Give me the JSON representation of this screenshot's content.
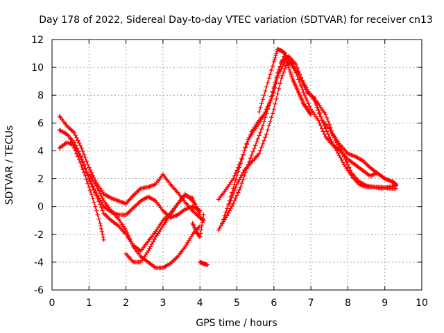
{
  "chart_data": {
    "type": "scatter",
    "title": "Day 178 of 2022, Sidereal Day-to-day VTEC variation (SDTVAR) for receiver cn13",
    "xlabel": "GPS time / hours",
    "ylabel": "SDTVAR / TECUs",
    "xlim": [
      0,
      10
    ],
    "ylim": [
      -6,
      12
    ],
    "xticks": [
      0,
      1,
      2,
      3,
      4,
      5,
      6,
      7,
      8,
      9,
      10
    ],
    "yticks": [
      -6,
      -4,
      -2,
      0,
      2,
      4,
      6,
      8,
      10,
      12
    ],
    "grid": true,
    "marker": "+",
    "color": "#ff0000",
    "series": [
      {
        "name": "s1",
        "x": [
          0.2,
          0.4,
          0.6,
          0.8,
          1.0,
          1.2,
          1.4,
          1.6,
          1.8,
          2.0,
          2.2,
          2.4,
          2.6,
          2.8,
          3.0,
          3.2,
          3.4,
          3.6,
          3.8,
          4.0,
          4.1
        ],
        "y": [
          6.5,
          5.8,
          5.3,
          4.2,
          2.8,
          1.7,
          0.9,
          0.6,
          0.4,
          0.2,
          0.8,
          1.3,
          1.4,
          1.6,
          2.3,
          1.6,
          1.0,
          0.3,
          -0.3,
          -0.8,
          -1.0
        ]
      },
      {
        "name": "s2",
        "x": [
          0.2,
          0.4,
          0.6,
          0.8,
          1.0,
          1.2,
          1.4,
          1.6,
          1.8,
          2.0,
          2.2,
          2.4,
          2.6,
          2.8,
          3.0,
          3.2,
          3.4,
          3.6,
          3.8,
          4.0
        ],
        "y": [
          5.5,
          5.2,
          4.6,
          3.4,
          2.0,
          0.9,
          0.0,
          -0.4,
          -0.6,
          -0.6,
          -0.1,
          0.4,
          0.7,
          0.4,
          -0.3,
          -0.8,
          -0.6,
          -0.2,
          0.0,
          -0.3
        ]
      },
      {
        "name": "s3",
        "x": [
          0.2,
          0.4,
          0.6,
          0.8,
          1.0,
          1.2,
          1.4,
          1.6,
          1.8,
          2.0,
          2.2,
          2.4,
          2.6,
          2.8,
          3.0,
          3.2,
          3.4,
          3.6,
          3.8,
          4.0
        ],
        "y": [
          4.2,
          4.6,
          4.4,
          3.5,
          2.0,
          0.8,
          -0.5,
          -1.0,
          -1.4,
          -2.0,
          -2.8,
          -3.2,
          -2.5,
          -1.8,
          -1.0,
          -0.5,
          0.2,
          0.8,
          0.6,
          -0.6
        ]
      },
      {
        "name": "s4",
        "x": [
          1.0,
          1.2,
          1.4,
          1.6,
          1.8,
          2.0,
          2.2,
          2.4,
          2.6,
          2.8,
          3.0,
          3.2,
          3.4,
          3.6,
          3.8,
          4.0
        ],
        "y": [
          2.3,
          1.5,
          0.4,
          -0.3,
          -0.9,
          -1.7,
          -2.9,
          -3.6,
          -4.0,
          -4.4,
          -4.4,
          -4.1,
          -3.6,
          -2.9,
          -2.0,
          -1.4
        ]
      },
      {
        "name": "s5",
        "x": [
          0.5,
          0.7,
          0.9,
          1.1,
          1.3,
          1.4
        ],
        "y": [
          4.8,
          3.6,
          2.2,
          0.6,
          -1.2,
          -2.4
        ]
      },
      {
        "name": "s6",
        "x": [
          2.0,
          2.2,
          2.4,
          2.6,
          2.8,
          3.0,
          3.2,
          3.4,
          3.6,
          3.8,
          4.0
        ],
        "y": [
          -3.4,
          -4.0,
          -4.0,
          -3.2,
          -2.2,
          -1.4,
          -0.6,
          0.2,
          0.9,
          0.4,
          -0.4
        ]
      },
      {
        "name": "s7",
        "x": [
          3.8,
          3.9,
          4.0,
          4.1
        ],
        "y": [
          -1.2,
          -1.8,
          -2.2,
          -0.6
        ]
      },
      {
        "name": "s8",
        "x": [
          4.0,
          4.1,
          4.2
        ],
        "y": [
          -4.0,
          -4.1,
          -4.2
        ]
      },
      {
        "name": "s9",
        "x": [
          4.5,
          4.7,
          4.9,
          5.1,
          5.3,
          5.5,
          5.7,
          5.9,
          6.1,
          6.3,
          6.5,
          6.7,
          6.9,
          7.1,
          7.3,
          7.5,
          7.7,
          7.9,
          8.1,
          8.3,
          8.5,
          8.7,
          8.9,
          9.1,
          9.3
        ],
        "y": [
          0.5,
          1.2,
          2.0,
          3.2,
          4.8,
          5.6,
          6.4,
          7.6,
          9.6,
          11.0,
          10.2,
          9.4,
          8.2,
          7.8,
          6.2,
          5.6,
          4.6,
          3.6,
          2.4,
          1.8,
          1.5,
          1.4,
          1.4,
          1.3,
          1.3
        ]
      },
      {
        "name": "s10",
        "x": [
          4.5,
          4.7,
          4.9,
          5.1,
          5.3,
          5.5,
          5.7,
          5.9,
          6.1,
          6.3,
          6.5,
          6.7,
          6.9,
          7.1,
          7.3,
          7.5,
          7.7,
          7.9,
          8.1,
          8.3,
          8.5,
          8.7,
          8.9,
          9.1,
          9.3
        ],
        "y": [
          -1.7,
          -0.8,
          0.2,
          1.4,
          3.0,
          4.4,
          5.8,
          7.6,
          9.4,
          10.4,
          10.2,
          9.4,
          8.4,
          7.6,
          6.2,
          5.0,
          4.0,
          3.0,
          2.2,
          1.6,
          1.4,
          1.4,
          1.3,
          1.4,
          1.5
        ]
      },
      {
        "name": "s11",
        "x": [
          4.6,
          4.8,
          5.0,
          5.2,
          5.4,
          5.6,
          5.8,
          6.0,
          6.2,
          6.4,
          6.6,
          6.8,
          7.0,
          7.2,
          7.4,
          7.6,
          7.8,
          8.0,
          8.2,
          8.4,
          8.6,
          8.8,
          9.0,
          9.2,
          9.3
        ],
        "y": [
          -1.2,
          0.4,
          2.2,
          4.0,
          5.4,
          6.2,
          6.8,
          8.2,
          10.4,
          10.8,
          10.2,
          8.8,
          8.0,
          7.4,
          6.6,
          5.2,
          4.4,
          3.8,
          3.6,
          3.3,
          2.8,
          2.4,
          2.0,
          1.8,
          1.5
        ]
      },
      {
        "name": "s12",
        "x": [
          4.8,
          5.0,
          5.2,
          5.4,
          5.6,
          5.8,
          6.0,
          6.2,
          6.4,
          6.6,
          6.8,
          7.0,
          7.2,
          7.4,
          7.6,
          7.8,
          8.0,
          8.2,
          8.4,
          8.6,
          8.8,
          9.0,
          9.2,
          9.3
        ],
        "y": [
          0.2,
          1.6,
          2.6,
          3.2,
          3.8,
          5.2,
          7.0,
          9.2,
          10.6,
          9.6,
          8.2,
          7.0,
          6.2,
          5.0,
          4.4,
          4.0,
          3.4,
          3.0,
          2.6,
          2.2,
          2.4,
          2.0,
          1.8,
          1.6
        ]
      },
      {
        "name": "s13",
        "x": [
          5.6,
          5.8,
          6.0,
          6.1,
          6.2,
          6.3,
          6.4,
          6.5,
          6.6,
          6.7,
          6.8,
          6.9,
          7.0
        ],
        "y": [
          6.8,
          8.6,
          10.4,
          11.3,
          11.2,
          11.0,
          10.0,
          9.2,
          8.6,
          8.0,
          7.4,
          7.0,
          6.6
        ]
      }
    ]
  }
}
